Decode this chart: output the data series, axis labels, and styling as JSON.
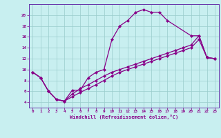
{
  "xlabel": "Windchill (Refroidissement éolien,°C)",
  "bg_color": "#c8eff0",
  "plot_bg_color": "#c8eff0",
  "border_color": "#6633aa",
  "line_color": "#880088",
  "grid_color": "#99cccc",
  "bottom_bar_color": "#6633aa",
  "xlim": [
    -0.5,
    23.5
  ],
  "ylim": [
    3,
    22
  ],
  "yticks": [
    4,
    6,
    8,
    10,
    12,
    14,
    16,
    18,
    20
  ],
  "xticks": [
    0,
    1,
    2,
    3,
    4,
    5,
    6,
    7,
    8,
    9,
    10,
    11,
    12,
    13,
    14,
    15,
    16,
    17,
    18,
    19,
    20,
    21,
    22,
    23
  ],
  "line1_x": [
    0,
    1,
    2,
    3,
    4,
    5,
    6,
    7,
    8,
    9,
    10,
    11,
    12,
    13,
    14,
    15,
    16,
    17,
    20,
    21,
    22,
    23
  ],
  "line1_y": [
    9.5,
    8.5,
    6,
    4.5,
    4.2,
    6.2,
    6.2,
    8.5,
    9.5,
    10,
    15.5,
    18,
    19,
    20.5,
    21,
    20.5,
    20.5,
    19,
    16.2,
    16.2,
    12.2,
    12
  ],
  "line2_x": [
    0,
    1,
    2,
    3,
    4,
    5,
    6,
    7,
    8,
    9,
    10,
    11,
    12,
    13,
    14,
    15,
    16,
    17,
    18,
    19,
    20,
    21,
    22,
    23
  ],
  "line2_y": [
    9.5,
    8.5,
    6,
    4.5,
    4.2,
    5.5,
    6.5,
    7.2,
    8.0,
    8.8,
    9.5,
    10.0,
    10.5,
    11.0,
    11.5,
    12.0,
    12.5,
    13.0,
    13.5,
    14.0,
    14.5,
    16.2,
    12.2,
    12
  ],
  "line3_x": [
    0,
    1,
    2,
    3,
    4,
    5,
    6,
    7,
    8,
    9,
    10,
    11,
    12,
    13,
    14,
    15,
    16,
    17,
    18,
    19,
    20,
    21,
    22,
    23
  ],
  "line3_y": [
    9.5,
    8.5,
    6,
    4.5,
    4.2,
    5.0,
    5.8,
    6.5,
    7.2,
    8.0,
    8.8,
    9.5,
    10.0,
    10.5,
    11.0,
    11.5,
    12.0,
    12.5,
    13.0,
    13.5,
    14.0,
    15.5,
    12.2,
    12
  ]
}
